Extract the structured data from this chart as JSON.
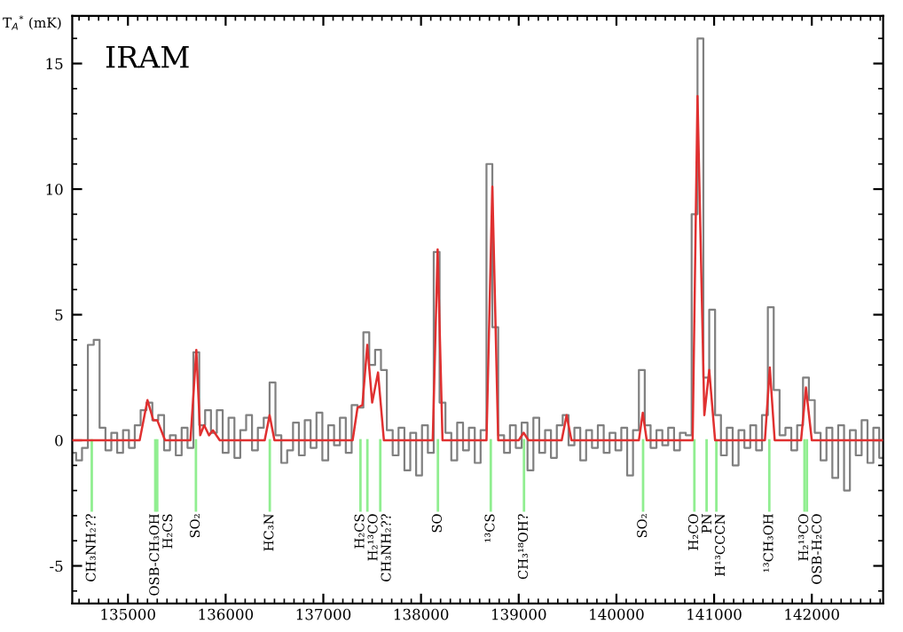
{
  "chart_data": {
    "type": "line",
    "ylabel": "T$_{A}$$^{*}$ (mK)",
    "annotations": [
      "IRAM"
    ],
    "xlim": [
      134430,
      142730
    ],
    "ylim": [
      -6.5,
      16.9
    ],
    "xticks": [
      135000,
      136000,
      137000,
      138000,
      139000,
      140000,
      141000,
      142000
    ],
    "yticks": [
      -5,
      0,
      5,
      10,
      15
    ],
    "grid": false,
    "marker": "none",
    "series": [
      {
        "type": "step",
        "color": "#808080",
        "x": [
          134440,
          134500,
          134560,
          134620,
          134680,
          134740,
          134800,
          134860,
          134920,
          134980,
          135040,
          135100,
          135160,
          135220,
          135280,
          135340,
          135400,
          135460,
          135520,
          135580,
          135640,
          135700,
          135760,
          135820,
          135880,
          135940,
          136000,
          136060,
          136120,
          136180,
          136240,
          136300,
          136360,
          136420,
          136480,
          136540,
          136600,
          136660,
          136720,
          136780,
          136840,
          136900,
          136960,
          137020,
          137080,
          137140,
          137200,
          137260,
          137320,
          137380,
          137440,
          137500,
          137560,
          137620,
          137680,
          137740,
          137800,
          137860,
          137920,
          137980,
          138040,
          138100,
          138160,
          138220,
          138280,
          138340,
          138400,
          138460,
          138520,
          138580,
          138640,
          138700,
          138760,
          138820,
          138880,
          138940,
          139000,
          139060,
          139120,
          139180,
          139240,
          139300,
          139360,
          139420,
          139480,
          139540,
          139600,
          139660,
          139720,
          139780,
          139840,
          139900,
          139960,
          140020,
          140080,
          140140,
          140200,
          140260,
          140320,
          140380,
          140440,
          140500,
          140560,
          140620,
          140680,
          140740,
          140800,
          140860,
          140920,
          140980,
          141040,
          141100,
          141160,
          141220,
          141280,
          141340,
          141400,
          141460,
          141520,
          141580,
          141640,
          141700,
          141760,
          141820,
          141880,
          141940,
          142000,
          142060,
          142120,
          142180,
          142240,
          142300,
          142360,
          142420,
          142480,
          142540,
          142600,
          142660,
          142720
        ],
        "values": [
          -0.5,
          -0.8,
          -0.3,
          3.8,
          4.0,
          0.5,
          -0.4,
          0.3,
          -0.5,
          0.4,
          -0.3,
          0.6,
          1.2,
          1.5,
          0.8,
          1.0,
          -0.4,
          0.2,
          -0.6,
          0.5,
          -0.3,
          3.5,
          0.6,
          1.2,
          0.3,
          1.2,
          -0.5,
          0.9,
          -0.7,
          0.4,
          1.0,
          -0.4,
          0.5,
          0.9,
          2.3,
          0.2,
          -0.9,
          -0.4,
          0.7,
          -0.6,
          0.8,
          -0.3,
          1.1,
          -0.8,
          0.6,
          -0.2,
          0.9,
          -0.5,
          1.4,
          1.3,
          4.3,
          3.0,
          3.6,
          2.8,
          0.4,
          -0.6,
          0.5,
          -1.2,
          0.3,
          -1.4,
          0.6,
          -0.5,
          7.5,
          1.5,
          0.3,
          -0.8,
          0.7,
          -0.4,
          0.5,
          -0.9,
          0.4,
          11.0,
          4.5,
          0.2,
          -0.5,
          0.6,
          -0.3,
          0.7,
          -1.2,
          0.9,
          -0.5,
          0.4,
          -0.7,
          0.6,
          1.0,
          -0.2,
          0.5,
          -0.8,
          0.4,
          -0.3,
          0.6,
          -0.5,
          0.3,
          -0.4,
          0.5,
          -1.4,
          0.4,
          2.8,
          0.6,
          -0.3,
          0.4,
          -0.2,
          0.5,
          -0.4,
          0.3,
          0.2,
          9.0,
          16.0,
          2.5,
          5.2,
          1.0,
          -0.6,
          0.5,
          -1.0,
          0.4,
          -0.3,
          0.6,
          -0.4,
          1.0,
          5.3,
          2.0,
          0.2,
          0.5,
          -0.4,
          0.6,
          2.5,
          1.6,
          0.3,
          -0.8,
          0.5,
          -1.5,
          0.6,
          -2.0,
          0.4,
          -0.6,
          0.8,
          -0.9,
          0.5,
          -0.7
        ]
      },
      {
        "color": "#e03030",
        "x": [
          134440,
          135120,
          135200,
          135260,
          135300,
          135380,
          135640,
          135700,
          135740,
          135780,
          135830,
          135870,
          135940,
          136400,
          136450,
          136500,
          137300,
          137350,
          137400,
          137450,
          137500,
          137560,
          137620,
          138120,
          138170,
          138220,
          138670,
          138730,
          138790,
          139000,
          139050,
          139100,
          139440,
          139490,
          139540,
          140230,
          140270,
          140310,
          140780,
          140830,
          140900,
          140950,
          141010,
          141520,
          141570,
          141620,
          141890,
          141940,
          142000,
          142720
        ],
        "values": [
          0,
          0,
          1.6,
          0.8,
          0.8,
          0,
          0,
          3.6,
          0.2,
          0.6,
          0.2,
          0.4,
          0,
          0,
          1.0,
          0,
          0,
          1.3,
          1.4,
          3.8,
          1.5,
          2.7,
          0,
          0,
          7.6,
          0,
          0,
          10.1,
          0,
          0,
          0.3,
          0,
          0,
          1.0,
          0,
          0,
          1.1,
          0,
          0,
          13.7,
          1.0,
          2.8,
          0,
          0,
          2.9,
          0,
          0,
          2.1,
          0,
          0
        ]
      }
    ],
    "ref_lines": [
      {
        "axis": "x",
        "value": 134630,
        "label": "CH₃NH₂??",
        "color": "#90ee90"
      },
      {
        "axis": "x",
        "value": 135280,
        "label": "OSB-CH₃OH",
        "color": "#90ee90"
      },
      {
        "axis": "x",
        "value": 135300,
        "label": "H₂CS",
        "color": "#90ee90"
      },
      {
        "axis": "x",
        "value": 135696,
        "label": "SO₂",
        "color": "#90ee90"
      },
      {
        "axis": "x",
        "value": 136452,
        "label": "HC₃N",
        "color": "#90ee90"
      },
      {
        "axis": "x",
        "value": 137380,
        "label": "H₂CS",
        "color": "#90ee90"
      },
      {
        "axis": "x",
        "value": 137451,
        "label": "H₂¹³CO",
        "color": "#90ee90"
      },
      {
        "axis": "x",
        "value": 137583,
        "label": "CH₃NH₂??",
        "color": "#90ee90"
      },
      {
        "axis": "x",
        "value": 138173,
        "label": "SO",
        "color": "#90ee90"
      },
      {
        "axis": "x",
        "value": 138714,
        "label": "¹³CS",
        "color": "#90ee90"
      },
      {
        "axis": "x",
        "value": 139054,
        "label": "CH₃¹⁸OH?",
        "color": "#90ee90"
      },
      {
        "axis": "x",
        "value": 140273,
        "label": "SO₂",
        "color": "#90ee90"
      },
      {
        "axis": "x",
        "value": 140798,
        "label": "H₂CO",
        "color": "#90ee90"
      },
      {
        "axis": "x",
        "value": 140923,
        "label": "PN",
        "color": "#90ee90"
      },
      {
        "axis": "x",
        "value": 141023,
        "label": "H¹³CCCN",
        "color": "#90ee90"
      },
      {
        "axis": "x",
        "value": 141565,
        "label": "¹³CH₃OH",
        "color": "#90ee90"
      },
      {
        "axis": "x",
        "value": 141925,
        "label": "H₂¹³CO",
        "color": "#90ee90"
      },
      {
        "axis": "x",
        "value": 141950,
        "label": "OSB-H₂CO",
        "color": "#90ee90"
      }
    ]
  }
}
